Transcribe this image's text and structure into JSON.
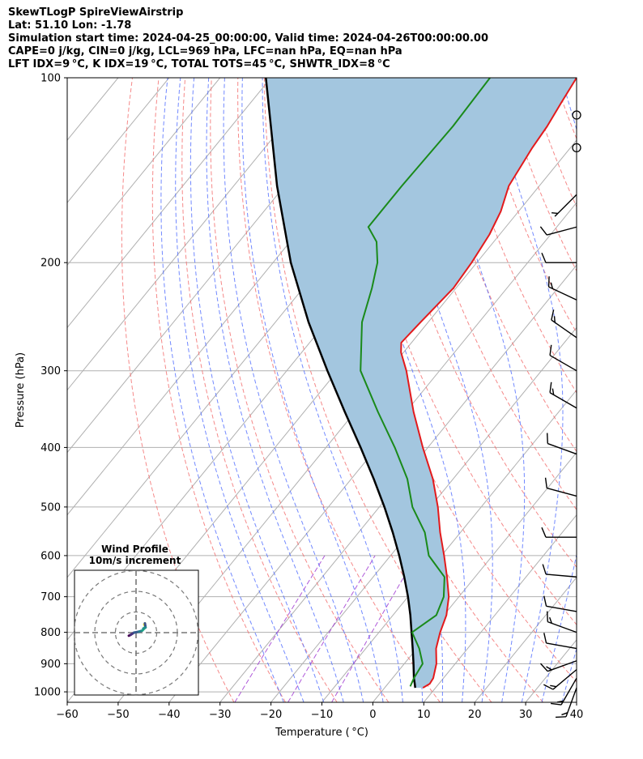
{
  "header": {
    "title": "SkewTLogP SpireViewAirstrip",
    "location": "Lat: 51.10   Lon: -1.78",
    "times": "Simulation start time: 2024-04-25_00:00:00, Valid time: 2024-04-26T00:00:00.00",
    "indices1": "CAPE=0 j/kg, CIN=0 j/kg, LCL=969 hPa, LFC=nan hPa, EQ=nan hPa",
    "indices2": "LFT IDX=9 °C, K IDX=19 °C, TOTAL TOTS=45 °C, SHWTR_IDX=8 °C"
  },
  "colors": {
    "temperature": "#e31a1c",
    "dewpoint": "#1a8a1a",
    "parcel": "#000000",
    "shade": "#a3c6df",
    "dry_adiabat": "#f26b6b",
    "moist_adiabat": "#4f6bff",
    "mixing_ratio": "#9b30d0",
    "isotherm": "#b0b0b0"
  },
  "chart_data": {
    "type": "skewt",
    "title": "SkewTLogP SpireViewAirstrip",
    "xlabel": "Temperature ( °C)",
    "ylabel": "Pressure (hPa)",
    "xlim": [
      -60,
      40
    ],
    "ylim": [
      1040,
      100
    ],
    "x_ticks": [
      -60,
      -50,
      -40,
      -30,
      -20,
      -10,
      0,
      10,
      20,
      30,
      40
    ],
    "x_tick_labels": [
      "−60",
      "−50",
      "−40",
      "−30",
      "−20",
      "−10",
      "0",
      "10",
      "20",
      "30",
      "40"
    ],
    "y_ticks": [
      1000,
      900,
      800,
      700,
      600,
      500,
      400,
      300,
      200,
      100
    ],
    "y_tick_labels": [
      "1000",
      "900",
      "800",
      "700",
      "600",
      "500",
      "400",
      "300",
      "200",
      "100"
    ],
    "temperature": {
      "p": [
        985,
        970,
        950,
        900,
        850,
        800,
        750,
        700,
        650,
        600,
        550,
        500,
        450,
        400,
        350,
        300,
        280,
        270,
        250,
        220,
        200,
        180,
        165,
        150,
        130,
        120,
        110,
        100
      ],
      "t": [
        7.5,
        8.2,
        8.0,
        6.3,
        3.8,
        2.0,
        0.5,
        -2.0,
        -5.5,
        -9.5,
        -14.0,
        -18.5,
        -24.0,
        -31.0,
        -38.5,
        -46.5,
        -50.5,
        -52.0,
        -51.5,
        -50.5,
        -51.0,
        -52.0,
        -53.5,
        -56.0,
        -57.5,
        -58.0,
        -59.0,
        -60.0
      ]
    },
    "dewpoint": {
      "p": [
        980,
        950,
        900,
        850,
        800,
        750,
        700,
        650,
        600,
        550,
        500,
        450,
        400,
        350,
        300,
        250,
        220,
        200,
        185,
        175,
        150,
        120,
        100
      ],
      "td": [
        4.8,
        4.2,
        3.6,
        0.5,
        -3.5,
        -1.5,
        -3.0,
        -6.0,
        -12.5,
        -17.0,
        -23.5,
        -29.0,
        -36.5,
        -45.5,
        -55.5,
        -63.0,
        -66.5,
        -69.5,
        -73.0,
        -77.0,
        -77.0,
        -76.5,
        -77.0
      ]
    },
    "parcel": {
      "p": [
        985,
        969,
        950,
        900,
        850,
        800,
        750,
        700,
        650,
        600,
        550,
        500,
        450,
        400,
        350,
        300,
        250,
        200,
        150,
        100
      ],
      "t": [
        6.0,
        5.2,
        4.2,
        1.8,
        -0.8,
        -3.6,
        -6.6,
        -10.0,
        -13.9,
        -18.3,
        -23.3,
        -29.0,
        -35.6,
        -43.2,
        -52.0,
        -62.0,
        -73.5,
        -86.5,
        -101.5,
        -121.0
      ]
    },
    "wind_barbs": [
      {
        "p": 985,
        "speed_kt": 15,
        "dir": 200
      },
      {
        "p": 950,
        "speed_kt": 15,
        "dir": 210
      },
      {
        "p": 920,
        "speed_kt": 15,
        "dir": 230
      },
      {
        "p": 890,
        "speed_kt": 15,
        "dir": 250
      },
      {
        "p": 850,
        "speed_kt": 10,
        "dir": 280
      },
      {
        "p": 800,
        "speed_kt": 15,
        "dir": 290
      },
      {
        "p": 740,
        "speed_kt": 10,
        "dir": 280
      },
      {
        "p": 650,
        "speed_kt": 10,
        "dir": 275
      },
      {
        "p": 560,
        "speed_kt": 10,
        "dir": 270
      },
      {
        "p": 480,
        "speed_kt": 10,
        "dir": 285
      },
      {
        "p": 410,
        "speed_kt": 10,
        "dir": 290
      },
      {
        "p": 345,
        "speed_kt": 15,
        "dir": 300
      },
      {
        "p": 300,
        "speed_kt": 10,
        "dir": 300
      },
      {
        "p": 265,
        "speed_kt": 15,
        "dir": 305
      },
      {
        "p": 230,
        "speed_kt": 15,
        "dir": 295
      },
      {
        "p": 200,
        "speed_kt": 10,
        "dir": 270
      },
      {
        "p": 175,
        "speed_kt": 10,
        "dir": 255
      },
      {
        "p": 155,
        "speed_kt": 5,
        "dir": 225
      },
      {
        "p": 130,
        "speed_kt": 0,
        "dir": 0
      },
      {
        "p": 115,
        "speed_kt": 0,
        "dir": 0
      }
    ],
    "hodograph": {
      "title": "Wind Profile",
      "subtitle": "10m/s increment",
      "rings_ms": [
        10,
        20,
        30
      ],
      "u": [
        -3.5,
        -2.5,
        -1.0,
        1.5,
        3.0,
        4.0,
        4.5,
        4.0,
        4.3,
        4.6,
        3.5
      ],
      "v": [
        -1.5,
        -1.0,
        0.0,
        0.5,
        1.0,
        2.0,
        3.0,
        4.0,
        4.5,
        2.5,
        2.0
      ]
    }
  }
}
